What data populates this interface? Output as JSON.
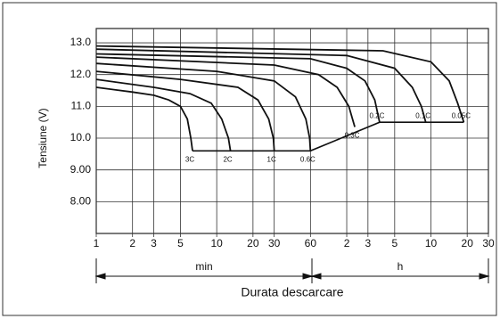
{
  "chart_data": {
    "type": "line",
    "ylabel": "Tensiune (V)",
    "xlabel": "Durata descarcare",
    "x_scale": "log",
    "grid": true,
    "color": "#111111",
    "unit_labels": [
      "min",
      "h"
    ],
    "xlim": [
      1,
      1800
    ],
    "xticks": [
      1,
      2,
      3,
      5,
      10,
      20,
      30,
      60,
      {
        "value": 120,
        "label": "2"
      },
      {
        "value": 180,
        "label": "3"
      },
      {
        "value": 300,
        "label": "5"
      },
      {
        "value": 600,
        "label": "10"
      },
      {
        "value": 1200,
        "label": "20"
      },
      {
        "value": 1800,
        "label": "30"
      }
    ],
    "ylim": [
      7,
      13.45
    ],
    "yticks": [
      {
        "value": 8,
        "label": "8.00"
      },
      {
        "value": 9,
        "label": "9.00"
      },
      {
        "value": 10,
        "label": "10.0"
      },
      {
        "value": 11,
        "label": "11.0"
      },
      {
        "value": 12,
        "label": "12.0"
      },
      {
        "value": 13,
        "label": "13.0"
      }
    ],
    "series": [
      {
        "name": "3C",
        "x": [
          1,
          2,
          3,
          4,
          5,
          5.7,
          6.1,
          6.3
        ],
        "values": [
          11.6,
          11.45,
          11.35,
          11.2,
          11.0,
          10.6,
          10.0,
          9.6
        ]
      },
      {
        "name": "2C",
        "x": [
          1,
          3,
          6,
          9,
          11,
          12.5,
          13
        ],
        "values": [
          11.85,
          11.6,
          11.4,
          11.1,
          10.6,
          10.0,
          9.6
        ]
      },
      {
        "name": "1C",
        "x": [
          1,
          5,
          15,
          22,
          27,
          29.5,
          30
        ],
        "values": [
          12.1,
          11.85,
          11.6,
          11.2,
          10.6,
          10.0,
          9.6
        ]
      },
      {
        "name": "0.6C",
        "x": [
          1,
          10,
          30,
          45,
          55,
          59,
          60
        ],
        "values": [
          12.35,
          12.1,
          11.8,
          11.3,
          10.6,
          10.0,
          9.6
        ]
      },
      {
        "name": "0.3C",
        "x": [
          1,
          30,
          70,
          100,
          125,
          140
        ],
        "values": [
          12.55,
          12.3,
          12.0,
          11.6,
          11.0,
          10.35
        ]
      },
      {
        "name": "0.2C",
        "x": [
          1,
          60,
          120,
          170,
          205,
          225
        ],
        "values": [
          12.65,
          12.5,
          12.2,
          11.8,
          11.2,
          10.5
        ]
      },
      {
        "name": "0.1C",
        "x": [
          1,
          120,
          300,
          420,
          500,
          543
        ],
        "values": [
          12.8,
          12.6,
          12.2,
          11.6,
          11.0,
          10.5
        ]
      },
      {
        "name": "0.05C",
        "x": [
          1,
          240,
          600,
          850,
          1000,
          1125
        ],
        "values": [
          12.9,
          12.75,
          12.4,
          11.8,
          11.1,
          10.5
        ]
      }
    ],
    "end_voltage": {
      "x": [
        6.3,
        60,
        225,
        1125
      ],
      "values": [
        9.6,
        9.6,
        10.5,
        10.5
      ]
    }
  }
}
